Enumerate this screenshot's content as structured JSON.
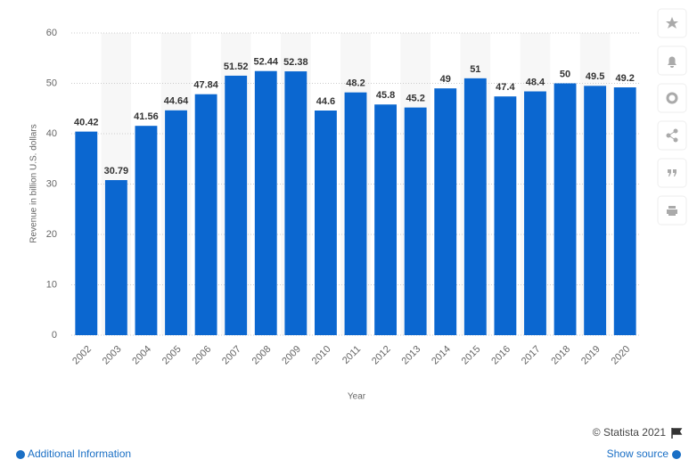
{
  "chart_data": {
    "type": "bar",
    "categories": [
      "2002",
      "2003",
      "2004",
      "2005",
      "2006",
      "2007",
      "2008",
      "2009",
      "2010",
      "2011",
      "2012",
      "2013",
      "2014",
      "2015",
      "2016",
      "2017",
      "2018",
      "2019",
      "2020"
    ],
    "values": [
      40.42,
      30.79,
      41.56,
      44.64,
      47.84,
      51.52,
      52.44,
      52.38,
      44.6,
      48.2,
      45.8,
      45.2,
      49,
      51,
      47.4,
      48.4,
      50,
      49.5,
      49.2
    ],
    "color": "#0b67d0",
    "ylim": [
      0,
      60
    ],
    "yticks": [
      0,
      10,
      20,
      30,
      40,
      50,
      60
    ],
    "grid": true,
    "y_label": "Revenue in billion U.S. dollars",
    "x_label": "Year"
  },
  "footer": {
    "copyright": "© Statista 2021",
    "additional_info": "Additional Information",
    "show_source": "Show source"
  }
}
